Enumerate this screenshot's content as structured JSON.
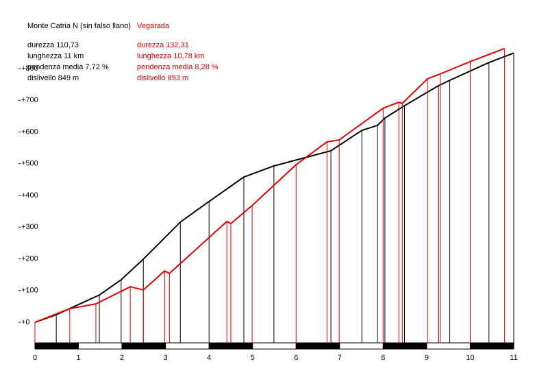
{
  "chart_data": {
    "type": "line",
    "xlim": [
      0,
      11
    ],
    "xticks": [
      0,
      1,
      2,
      3,
      4,
      5,
      6,
      7,
      8,
      9,
      10,
      11
    ],
    "ylim": [
      0,
      800
    ],
    "yticks": [
      {
        "value": 0,
        "label": "+0"
      },
      {
        "value": 100,
        "label": "+100"
      },
      {
        "value": 200,
        "label": "+200"
      },
      {
        "value": 300,
        "label": "+300"
      },
      {
        "value": 400,
        "label": "+400"
      },
      {
        "value": 500,
        "label": "+500"
      },
      {
        "value": 600,
        "label": "+600"
      },
      {
        "value": 700,
        "label": "+700"
      },
      {
        "value": 800,
        "label": "+800"
      }
    ],
    "series": [
      {
        "name": "Monte Catria N (sin falso llano)",
        "color": "#000000",
        "stats": [
          "durezza 110,73",
          "lunghezza 11 km",
          "pendenza media 7,72 %",
          "dislivello 849 m"
        ],
        "x": [
          0,
          0.49,
          1.48,
          1.98,
          2.49,
          3.34,
          4.0,
          4.8,
          5.49,
          6.8,
          7.51,
          7.87,
          8.04,
          8.49,
          9.27,
          9.53,
          10.43,
          11.0
        ],
        "values": [
          0,
          24,
          86,
          134,
          199,
          316,
          381,
          458,
          493,
          541,
          605,
          621,
          644,
          683,
          746,
          763,
          819,
          849
        ]
      },
      {
        "name": "Vegarada",
        "color": "#e00000",
        "stats": [
          "durezza 132,31",
          "lunghezza 10,78 km",
          "pendenza media 8,28 %",
          "dislivello 893 m"
        ],
        "x": [
          0,
          0.8,
          1.4,
          2.19,
          2.49,
          2.98,
          3.09,
          4.41,
          4.5,
          4.99,
          6.0,
          6.71,
          6.99,
          8.0,
          8.36,
          8.44,
          9.02,
          9.31,
          10.0,
          10.79
        ],
        "values": [
          0,
          43,
          58,
          112,
          102,
          162,
          154,
          318,
          311,
          368,
          497,
          569,
          575,
          675,
          694,
          690,
          768,
          783,
          822,
          863
        ]
      }
    ]
  }
}
